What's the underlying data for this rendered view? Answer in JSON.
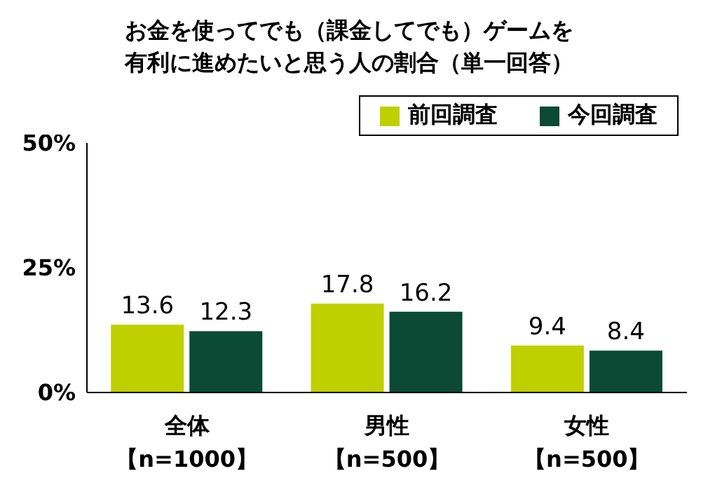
{
  "chart_data": {
    "type": "bar",
    "title": "お金を使ってでも（課金してでも）ゲームを有利に進めたいと思う人の割合（単一回答）",
    "categories": [
      "全体【n=1000】",
      "男性【n=500】",
      "女性【n=500】"
    ],
    "series": [
      {
        "name": "前回調査",
        "color": "#bfd000",
        "values": [
          13.6,
          17.8,
          9.4
        ]
      },
      {
        "name": "今回調査",
        "color": "#0b4a35",
        "values": [
          12.3,
          16.2,
          8.4
        ]
      }
    ],
    "ylim": [
      0,
      50
    ],
    "yticks": [
      {
        "value": 0,
        "label": "0%"
      },
      {
        "value": 25,
        "label": "25%"
      },
      {
        "value": 50,
        "label": "50%"
      }
    ],
    "data_labels": true,
    "legend": "top right",
    "grid": false
  }
}
